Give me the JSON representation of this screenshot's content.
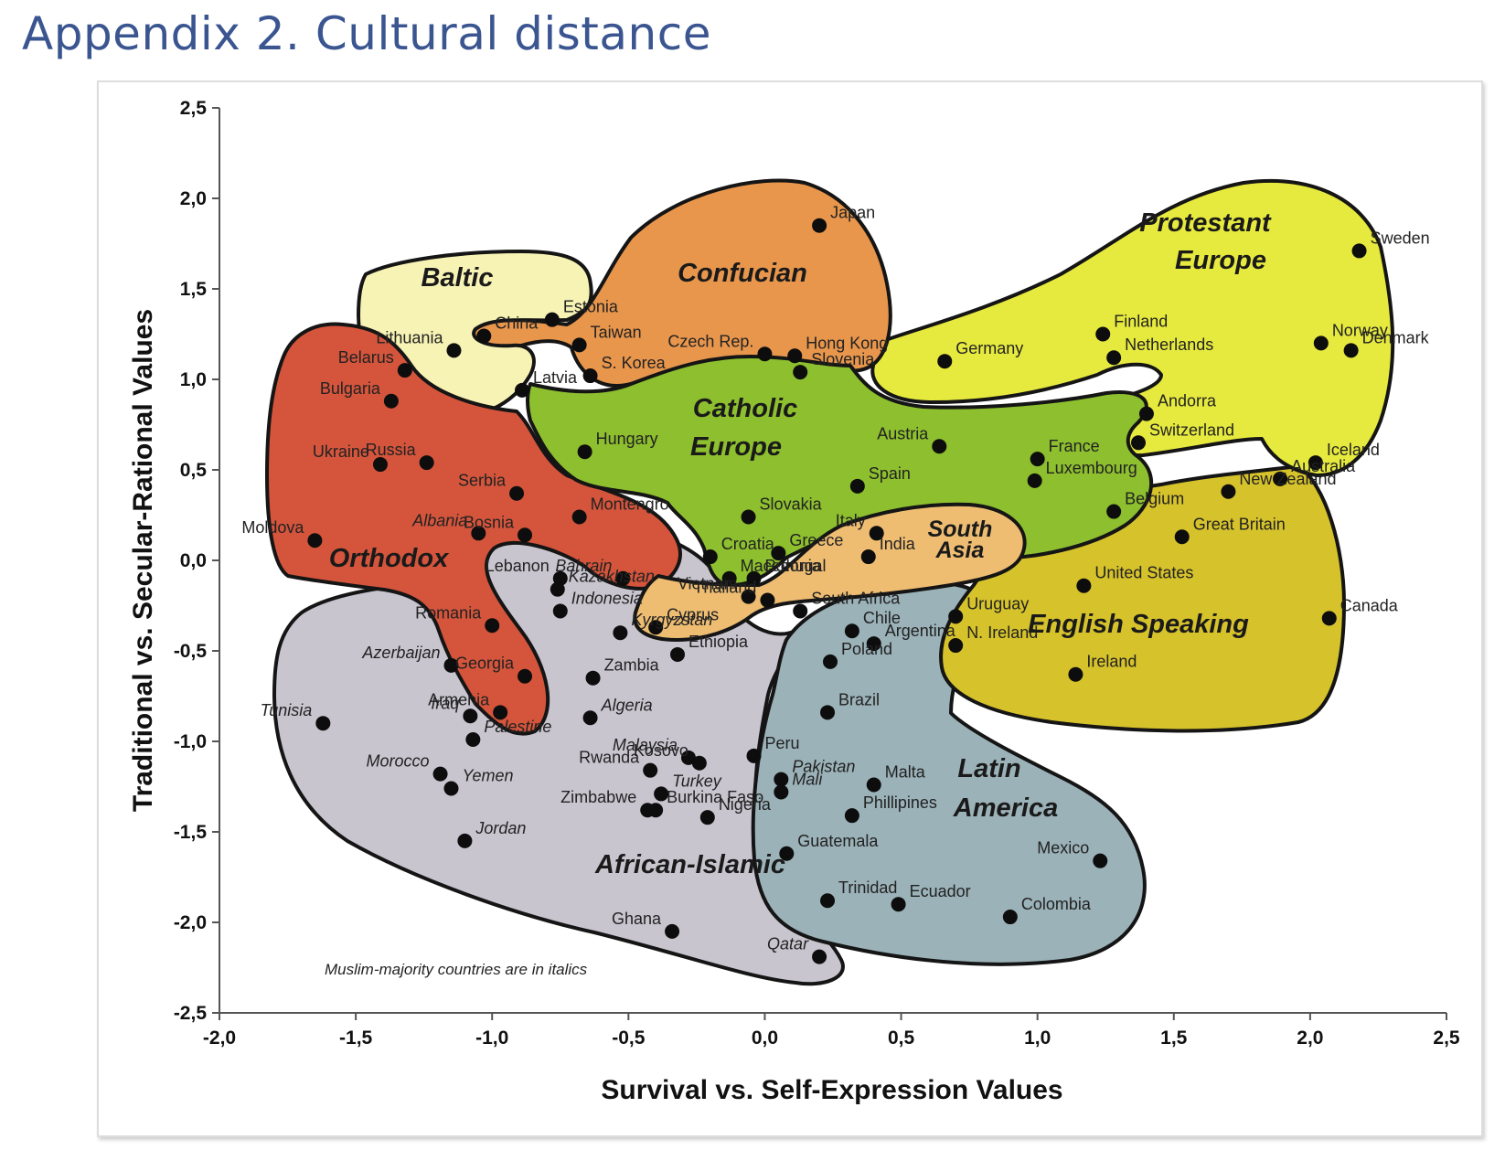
{
  "page_title": "Appendix 2. Cultural distance",
  "colors": {
    "page_title": "#3a5590",
    "african_islamic": "#c8c5cf",
    "latin_america": "#9bb2b8",
    "english_speaking": "#d6c22b",
    "protestant_europe": "#e7ea3e",
    "confucian": "#e8964c",
    "baltic": "#f7f3b4",
    "orthodox": "#d4553c",
    "catholic_europe": "#8dbf2e",
    "south_asia": "#eebd72"
  },
  "chart_data": {
    "type": "scatter",
    "title": "",
    "xlabel": "Survival vs. Self-Expression Values",
    "ylabel": "Traditional vs. Secular-Rational Values",
    "xlim": [
      -2.0,
      2.5
    ],
    "ylim": [
      -2.5,
      2.5
    ],
    "xticks": [
      "-2,0",
      "-1,5",
      "-1,0",
      "-0,5",
      "0,0",
      "0,5",
      "1,0",
      "1,5",
      "2,0",
      "2,5"
    ],
    "yticks": [
      "2,5",
      "2,0",
      "1,5",
      "1,0",
      "0,5",
      "0,0",
      "-0,5",
      "-1,0",
      "-1,5",
      "-2,0",
      "-2,5"
    ],
    "grid": false,
    "annotation": "Muslim-majority countries are in italics",
    "zones": [
      {
        "name": "African-Islamic",
        "label": "African-Islamic"
      },
      {
        "name": "Latin America",
        "label": "Latin America"
      },
      {
        "name": "English Speaking",
        "label": "English Speaking"
      },
      {
        "name": "Protestant Europe",
        "label": "Protestant Europe"
      },
      {
        "name": "Confucian",
        "label": "Confucian"
      },
      {
        "name": "Baltic",
        "label": "Baltic"
      },
      {
        "name": "Orthodox",
        "label": "Orthodox"
      },
      {
        "name": "Catholic Europe",
        "label": "Catholic Europe"
      },
      {
        "name": "South Asia",
        "label": "South Asia"
      }
    ],
    "points": [
      {
        "name": "Japan",
        "x": 0.2,
        "y": 1.85,
        "muslim": false
      },
      {
        "name": "Sweden",
        "x": 2.18,
        "y": 1.71,
        "muslim": false
      },
      {
        "name": "Estonia",
        "x": -0.78,
        "y": 1.33,
        "muslim": false
      },
      {
        "name": "Finland",
        "x": 1.24,
        "y": 1.25,
        "muslim": false
      },
      {
        "name": "Lithuania",
        "x": -1.14,
        "y": 1.16,
        "muslim": false
      },
      {
        "name": "China",
        "x": -1.03,
        "y": 1.24,
        "muslim": false
      },
      {
        "name": "Taiwan",
        "x": -0.68,
        "y": 1.19,
        "muslim": false
      },
      {
        "name": "Hong Kong",
        "x": 0.11,
        "y": 1.13,
        "muslim": false
      },
      {
        "name": "Norway",
        "x": 2.04,
        "y": 1.2,
        "muslim": false
      },
      {
        "name": "Denmark",
        "x": 2.15,
        "y": 1.16,
        "muslim": false
      },
      {
        "name": "Netherlands",
        "x": 1.28,
        "y": 1.12,
        "muslim": false
      },
      {
        "name": "Czech Rep.",
        "x": 0.0,
        "y": 1.14,
        "muslim": false
      },
      {
        "name": "Germany",
        "x": 0.66,
        "y": 1.1,
        "muslim": false
      },
      {
        "name": "Belarus",
        "x": -1.32,
        "y": 1.05,
        "muslim": false
      },
      {
        "name": "Slovenia",
        "x": 0.13,
        "y": 1.04,
        "muslim": false
      },
      {
        "name": "S. Korea",
        "x": -0.64,
        "y": 1.02,
        "muslim": false
      },
      {
        "name": "Latvia",
        "x": -0.89,
        "y": 0.94,
        "muslim": false
      },
      {
        "name": "Bulgaria",
        "x": -1.37,
        "y": 0.88,
        "muslim": false
      },
      {
        "name": "Andorra",
        "x": 1.4,
        "y": 0.81,
        "muslim": false
      },
      {
        "name": "Switzerland",
        "x": 1.37,
        "y": 0.65,
        "muslim": false
      },
      {
        "name": "Austria",
        "x": 0.64,
        "y": 0.63,
        "muslim": false
      },
      {
        "name": "Hungary",
        "x": -0.66,
        "y": 0.6,
        "muslim": false
      },
      {
        "name": "France",
        "x": 1.0,
        "y": 0.56,
        "muslim": false
      },
      {
        "name": "Iceland",
        "x": 2.02,
        "y": 0.54,
        "muslim": false
      },
      {
        "name": "Russia",
        "x": -1.24,
        "y": 0.54,
        "muslim": false
      },
      {
        "name": "Ukraine",
        "x": -1.41,
        "y": 0.53,
        "muslim": false
      },
      {
        "name": "Australia",
        "x": 1.89,
        "y": 0.45,
        "muslim": false
      },
      {
        "name": "Luxembourg",
        "x": 0.99,
        "y": 0.44,
        "muslim": false
      },
      {
        "name": "Spain",
        "x": 0.34,
        "y": 0.41,
        "muslim": false
      },
      {
        "name": "New Zealand",
        "x": 1.7,
        "y": 0.38,
        "muslim": false
      },
      {
        "name": "Serbia",
        "x": -0.91,
        "y": 0.37,
        "muslim": false
      },
      {
        "name": "Belgium",
        "x": 1.28,
        "y": 0.27,
        "muslim": false
      },
      {
        "name": "Montengro",
        "x": -0.68,
        "y": 0.24,
        "muslim": false
      },
      {
        "name": "Slovakia",
        "x": -0.06,
        "y": 0.24,
        "muslim": false
      },
      {
        "name": "Albania",
        "x": -1.05,
        "y": 0.15,
        "muslim": true
      },
      {
        "name": "Bosnia",
        "x": -0.88,
        "y": 0.14,
        "muslim": false
      },
      {
        "name": "Italy",
        "x": 0.41,
        "y": 0.15,
        "muslim": false
      },
      {
        "name": "Great Britain",
        "x": 1.53,
        "y": 0.13,
        "muslim": false
      },
      {
        "name": "Moldova",
        "x": -1.65,
        "y": 0.11,
        "muslim": false
      },
      {
        "name": "Greece",
        "x": 0.05,
        "y": 0.04,
        "muslim": false
      },
      {
        "name": "Croatia",
        "x": -0.2,
        "y": 0.02,
        "muslim": false
      },
      {
        "name": "India",
        "x": 0.38,
        "y": 0.02,
        "muslim": false
      },
      {
        "name": "Lebanon",
        "x": -0.75,
        "y": -0.1,
        "muslim": false
      },
      {
        "name": "Bahrain",
        "x": -0.52,
        "y": -0.1,
        "muslim": true
      },
      {
        "name": "Macedonia",
        "x": -0.13,
        "y": -0.1,
        "muslim": false
      },
      {
        "name": "Portugal",
        "x": -0.04,
        "y": -0.1,
        "muslim": false
      },
      {
        "name": "United States",
        "x": 1.17,
        "y": -0.14,
        "muslim": false
      },
      {
        "name": "Kazakhstan",
        "x": -0.76,
        "y": -0.16,
        "muslim": true
      },
      {
        "name": "Vietnam",
        "x": -0.06,
        "y": -0.2,
        "muslim": false
      },
      {
        "name": "Thailand",
        "x": 0.01,
        "y": -0.22,
        "muslim": false
      },
      {
        "name": "Indonesia",
        "x": -0.75,
        "y": -0.28,
        "muslim": true
      },
      {
        "name": "South Africa",
        "x": 0.13,
        "y": -0.28,
        "muslim": false
      },
      {
        "name": "Uruguay",
        "x": 0.7,
        "y": -0.31,
        "muslim": false
      },
      {
        "name": "Canada",
        "x": 2.07,
        "y": -0.32,
        "muslim": false
      },
      {
        "name": "Romania",
        "x": -1.0,
        "y": -0.36,
        "muslim": false
      },
      {
        "name": "Cyprus",
        "x": -0.4,
        "y": -0.37,
        "muslim": false
      },
      {
        "name": "Kyrgyzstan",
        "x": -0.53,
        "y": -0.4,
        "muslim": true
      },
      {
        "name": "Chile",
        "x": 0.32,
        "y": -0.39,
        "muslim": false
      },
      {
        "name": "Argentina",
        "x": 0.4,
        "y": -0.46,
        "muslim": false
      },
      {
        "name": "N. Ireland",
        "x": 0.7,
        "y": -0.47,
        "muslim": false
      },
      {
        "name": "Ethiopia",
        "x": -0.32,
        "y": -0.52,
        "muslim": false
      },
      {
        "name": "Poland",
        "x": 0.24,
        "y": -0.56,
        "muslim": false
      },
      {
        "name": "Azerbaijan",
        "x": -1.15,
        "y": -0.58,
        "muslim": true
      },
      {
        "name": "Ireland",
        "x": 1.14,
        "y": -0.63,
        "muslim": false
      },
      {
        "name": "Georgia",
        "x": -0.88,
        "y": -0.64,
        "muslim": false
      },
      {
        "name": "Zambia",
        "x": -0.63,
        "y": -0.65,
        "muslim": false
      },
      {
        "name": "Brazil",
        "x": 0.23,
        "y": -0.84,
        "muslim": false
      },
      {
        "name": "Armenia",
        "x": -0.97,
        "y": -0.84,
        "muslim": false
      },
      {
        "name": "Iraq",
        "x": -1.08,
        "y": -0.86,
        "muslim": true
      },
      {
        "name": "Algeria",
        "x": -0.64,
        "y": -0.87,
        "muslim": true
      },
      {
        "name": "Tunisia",
        "x": -1.62,
        "y": -0.9,
        "muslim": true
      },
      {
        "name": "Palestine",
        "x": -1.07,
        "y": -0.99,
        "muslim": true
      },
      {
        "name": "Peru",
        "x": -0.04,
        "y": -1.08,
        "muslim": false
      },
      {
        "name": "Malaysia",
        "x": -0.28,
        "y": -1.09,
        "muslim": true
      },
      {
        "name": "Kosovo",
        "x": -0.24,
        "y": -1.12,
        "muslim": false
      },
      {
        "name": "Morocco",
        "x": -1.19,
        "y": -1.18,
        "muslim": true
      },
      {
        "name": "Rwanda",
        "x": -0.42,
        "y": -1.16,
        "muslim": false
      },
      {
        "name": "Turkey",
        "x": -0.38,
        "y": -1.29,
        "muslim": true
      },
      {
        "name": "Pakistan",
        "x": 0.06,
        "y": -1.21,
        "muslim": true
      },
      {
        "name": "Malta",
        "x": 0.4,
        "y": -1.24,
        "muslim": false
      },
      {
        "name": "Yemen",
        "x": -1.15,
        "y": -1.26,
        "muslim": true
      },
      {
        "name": "Mali",
        "x": 0.06,
        "y": -1.28,
        "muslim": true
      },
      {
        "name": "Burkina Faso",
        "x": -0.4,
        "y": -1.38,
        "muslim": false
      },
      {
        "name": "Phillipines",
        "x": 0.32,
        "y": -1.41,
        "muslim": false
      },
      {
        "name": "Nigeria",
        "x": -0.21,
        "y": -1.42,
        "muslim": false
      },
      {
        "name": "Zimbabwe",
        "x": -0.43,
        "y": -1.38,
        "muslim": false
      },
      {
        "name": "Jordan",
        "x": -1.1,
        "y": -1.55,
        "muslim": true
      },
      {
        "name": "Guatemala",
        "x": 0.08,
        "y": -1.62,
        "muslim": false
      },
      {
        "name": "Mexico",
        "x": 1.23,
        "y": -1.66,
        "muslim": false
      },
      {
        "name": "Trinidad",
        "x": 0.23,
        "y": -1.88,
        "muslim": false
      },
      {
        "name": "Ecuador",
        "x": 0.49,
        "y": -1.9,
        "muslim": false
      },
      {
        "name": "Colombia",
        "x": 0.9,
        "y": -1.97,
        "muslim": false
      },
      {
        "name": "Ghana",
        "x": -0.34,
        "y": -2.05,
        "muslim": false
      },
      {
        "name": "Qatar",
        "x": 0.2,
        "y": -2.19,
        "muslim": true
      }
    ]
  }
}
